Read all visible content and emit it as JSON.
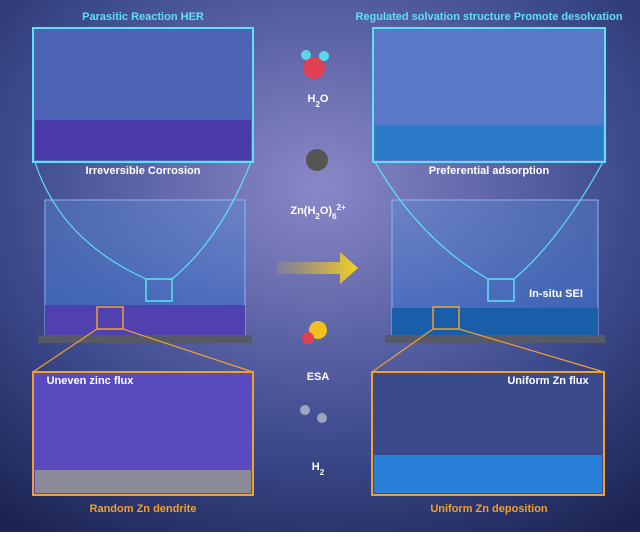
{
  "panels": {
    "top_left": {
      "title": "Parasitic Reaction HER",
      "caption": "Irreversible Corrosion"
    },
    "top_right": {
      "title": "Regulated solvation structure Promote desolvation",
      "caption": "Preferential adsorption"
    },
    "bottom_left": {
      "title": "Uneven zinc flux",
      "caption": "Random Zn dendrite"
    },
    "bottom_right": {
      "title": "Uniform Zn flux",
      "caption": "Uniform Zn deposition"
    },
    "middle_right": {
      "label": "In-situ SEI"
    }
  },
  "legend": [
    {
      "parts": [
        {
          "text": "H"
        },
        {
          "text": "2",
          "style": "sub"
        },
        {
          "text": "O"
        }
      ]
    },
    {
      "parts": [
        {
          "text": "Zn(H"
        },
        {
          "text": "2",
          "style": "sub"
        },
        {
          "text": "O)"
        },
        {
          "text": "6",
          "style": "sub"
        },
        {
          "text": "2+",
          "style": "sup"
        }
      ]
    },
    {
      "parts": [
        {
          "text": "ESA"
        }
      ]
    },
    {
      "parts": [
        {
          "text": "H"
        },
        {
          "text": "2",
          "style": "sub"
        }
      ]
    }
  ]
}
